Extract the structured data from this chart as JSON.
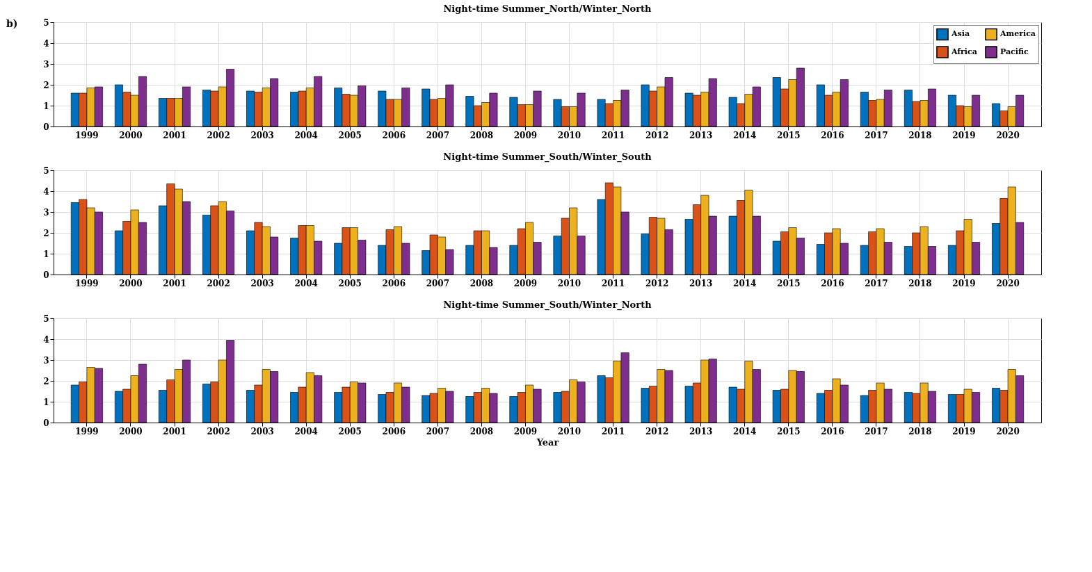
{
  "chart_data": [
    {
      "type": "bar",
      "title": "Night-time Summer_North/Winter_North",
      "annotations": [
        "b)"
      ],
      "legend": "top right",
      "grid": true,
      "categories": [
        "1999",
        "2000",
        "2001",
        "2002",
        "2003",
        "2004",
        "2005",
        "2006",
        "2007",
        "2008",
        "2009",
        "2010",
        "2011",
        "2012",
        "2013",
        "2014",
        "2015",
        "2016",
        "2017",
        "2018",
        "2019",
        "2020"
      ],
      "ylim": [
        0,
        5
      ],
      "yticks": [
        0,
        1,
        2,
        3,
        4,
        5
      ],
      "series": [
        {
          "name": "Asia",
          "color": "#0072bd",
          "values": [
            1.6,
            2.0,
            1.35,
            1.75,
            1.7,
            1.65,
            1.85,
            1.7,
            1.8,
            1.45,
            1.4,
            1.3,
            1.3,
            2.0,
            1.6,
            1.4,
            2.35,
            2.0,
            1.65,
            1.75,
            1.5,
            1.1
          ]
        },
        {
          "name": "Africa",
          "color": "#d95319",
          "values": [
            1.6,
            1.65,
            1.35,
            1.7,
            1.65,
            1.7,
            1.55,
            1.3,
            1.3,
            1.0,
            1.05,
            0.95,
            1.1,
            1.7,
            1.5,
            1.1,
            1.8,
            1.5,
            1.25,
            1.2,
            1.0,
            0.75
          ]
        },
        {
          "name": "America",
          "color": "#edb120",
          "values": [
            1.85,
            1.5,
            1.35,
            1.9,
            1.85,
            1.85,
            1.5,
            1.3,
            1.35,
            1.15,
            1.05,
            0.95,
            1.25,
            1.9,
            1.65,
            1.55,
            2.25,
            1.65,
            1.3,
            1.25,
            0.95,
            0.95
          ]
        },
        {
          "name": "Pacific",
          "color": "#7e2f8e",
          "values": [
            1.9,
            2.4,
            1.9,
            2.75,
            2.3,
            2.4,
            1.95,
            1.85,
            2.0,
            1.6,
            1.7,
            1.6,
            1.75,
            2.35,
            2.3,
            1.9,
            2.8,
            2.25,
            1.75,
            1.8,
            1.5,
            1.5
          ]
        }
      ]
    },
    {
      "type": "bar",
      "title": "Night-time Summer_South/Winter_South",
      "grid": true,
      "categories": [
        "1999",
        "2000",
        "2001",
        "2002",
        "2003",
        "2004",
        "2005",
        "2006",
        "2007",
        "2008",
        "2009",
        "2010",
        "2011",
        "2012",
        "2013",
        "2014",
        "2015",
        "2016",
        "2017",
        "2018",
        "2019",
        "2020"
      ],
      "ylim": [
        0,
        5
      ],
      "yticks": [
        0,
        1,
        2,
        3,
        4,
        5
      ],
      "series": [
        {
          "name": "Asia",
          "color": "#0072bd",
          "values": [
            3.45,
            2.1,
            3.3,
            2.85,
            2.1,
            1.75,
            1.5,
            1.4,
            1.15,
            1.4,
            1.4,
            1.85,
            3.6,
            1.95,
            2.65,
            2.8,
            1.6,
            1.45,
            1.4,
            1.35,
            1.4,
            2.45
          ]
        },
        {
          "name": "Africa",
          "color": "#d95319",
          "values": [
            3.6,
            2.55,
            4.35,
            3.3,
            2.5,
            2.35,
            2.25,
            2.15,
            1.9,
            2.1,
            2.2,
            2.7,
            4.4,
            2.75,
            3.35,
            3.55,
            2.05,
            2.0,
            2.05,
            2.0,
            2.1,
            3.65
          ]
        },
        {
          "name": "America",
          "color": "#edb120",
          "values": [
            3.2,
            3.1,
            4.1,
            3.5,
            2.3,
            2.35,
            2.25,
            2.3,
            1.8,
            2.1,
            2.5,
            3.2,
            4.2,
            2.7,
            3.8,
            4.05,
            2.25,
            2.2,
            2.2,
            2.3,
            2.65,
            4.2
          ]
        },
        {
          "name": "Pacific",
          "color": "#7e2f8e",
          "values": [
            3.0,
            2.5,
            3.5,
            3.05,
            1.8,
            1.6,
            1.65,
            1.5,
            1.2,
            1.3,
            1.55,
            1.85,
            3.0,
            2.15,
            2.8,
            2.8,
            1.75,
            1.5,
            1.55,
            1.35,
            1.55,
            2.5
          ]
        }
      ]
    },
    {
      "type": "bar",
      "title": "Night-time Summer_South/Winter_North",
      "xlabel": "Year",
      "grid": true,
      "categories": [
        "1999",
        "2000",
        "2001",
        "2002",
        "2003",
        "2004",
        "2005",
        "2006",
        "2007",
        "2008",
        "2009",
        "2010",
        "2011",
        "2012",
        "2013",
        "2014",
        "2015",
        "2016",
        "2017",
        "2018",
        "2019",
        "2020"
      ],
      "ylim": [
        0,
        5
      ],
      "yticks": [
        0,
        1,
        2,
        3,
        4,
        5
      ],
      "series": [
        {
          "name": "Asia",
          "color": "#0072bd",
          "values": [
            1.8,
            1.5,
            1.55,
            1.85,
            1.55,
            1.45,
            1.45,
            1.35,
            1.3,
            1.25,
            1.25,
            1.45,
            2.25,
            1.65,
            1.75,
            1.7,
            1.55,
            1.4,
            1.3,
            1.45,
            1.35,
            1.65
          ]
        },
        {
          "name": "Africa",
          "color": "#d95319",
          "values": [
            1.95,
            1.6,
            2.05,
            1.95,
            1.8,
            1.7,
            1.7,
            1.45,
            1.4,
            1.45,
            1.45,
            1.5,
            2.15,
            1.75,
            1.9,
            1.6,
            1.6,
            1.55,
            1.55,
            1.4,
            1.35,
            1.55
          ]
        },
        {
          "name": "America",
          "color": "#edb120",
          "values": [
            2.65,
            2.25,
            2.55,
            3.0,
            2.55,
            2.4,
            1.95,
            1.9,
            1.65,
            1.65,
            1.8,
            2.05,
            2.95,
            2.55,
            3.0,
            2.95,
            2.5,
            2.1,
            1.9,
            1.9,
            1.6,
            2.55
          ]
        },
        {
          "name": "Pacific",
          "color": "#7e2f8e",
          "values": [
            2.6,
            2.8,
            3.0,
            3.95,
            2.45,
            2.25,
            1.9,
            1.7,
            1.5,
            1.4,
            1.6,
            1.95,
            3.35,
            2.5,
            3.05,
            2.55,
            2.45,
            1.8,
            1.6,
            1.5,
            1.45,
            2.25
          ]
        }
      ]
    }
  ]
}
